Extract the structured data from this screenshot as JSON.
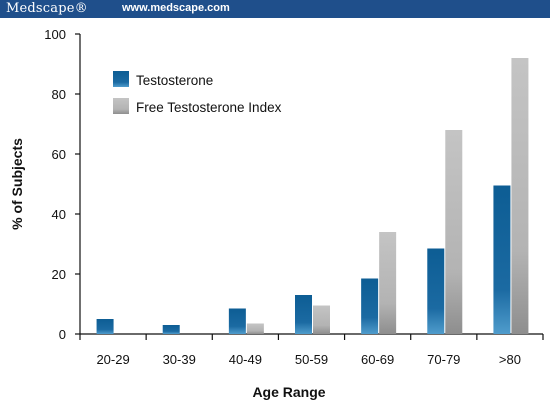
{
  "header": {
    "brand": "Medscape®",
    "url": "www.medscape.com"
  },
  "colors": {
    "banner": "#1f4f8b",
    "testosterone": "#1a6aa1",
    "free_testosterone_index": "#b8b8b8"
  },
  "chart_data": {
    "type": "bar",
    "title": "",
    "xlabel": "Age Range",
    "ylabel": "% of Subjects",
    "ylim": [
      0,
      100
    ],
    "yticks": [
      0,
      20,
      40,
      60,
      80,
      100
    ],
    "categories": [
      "20-29",
      "30-39",
      "40-49",
      "50-59",
      "60-69",
      "70-79",
      ">80"
    ],
    "series": [
      {
        "name": "Testosterone",
        "values": [
          5,
          3,
          8.5,
          13,
          18.5,
          28.5,
          49.5
        ]
      },
      {
        "name": "Free Testosterone Index",
        "values": [
          0,
          0,
          3.5,
          9.5,
          34,
          68,
          92
        ]
      }
    ],
    "legend": "top-left",
    "grid": false
  }
}
